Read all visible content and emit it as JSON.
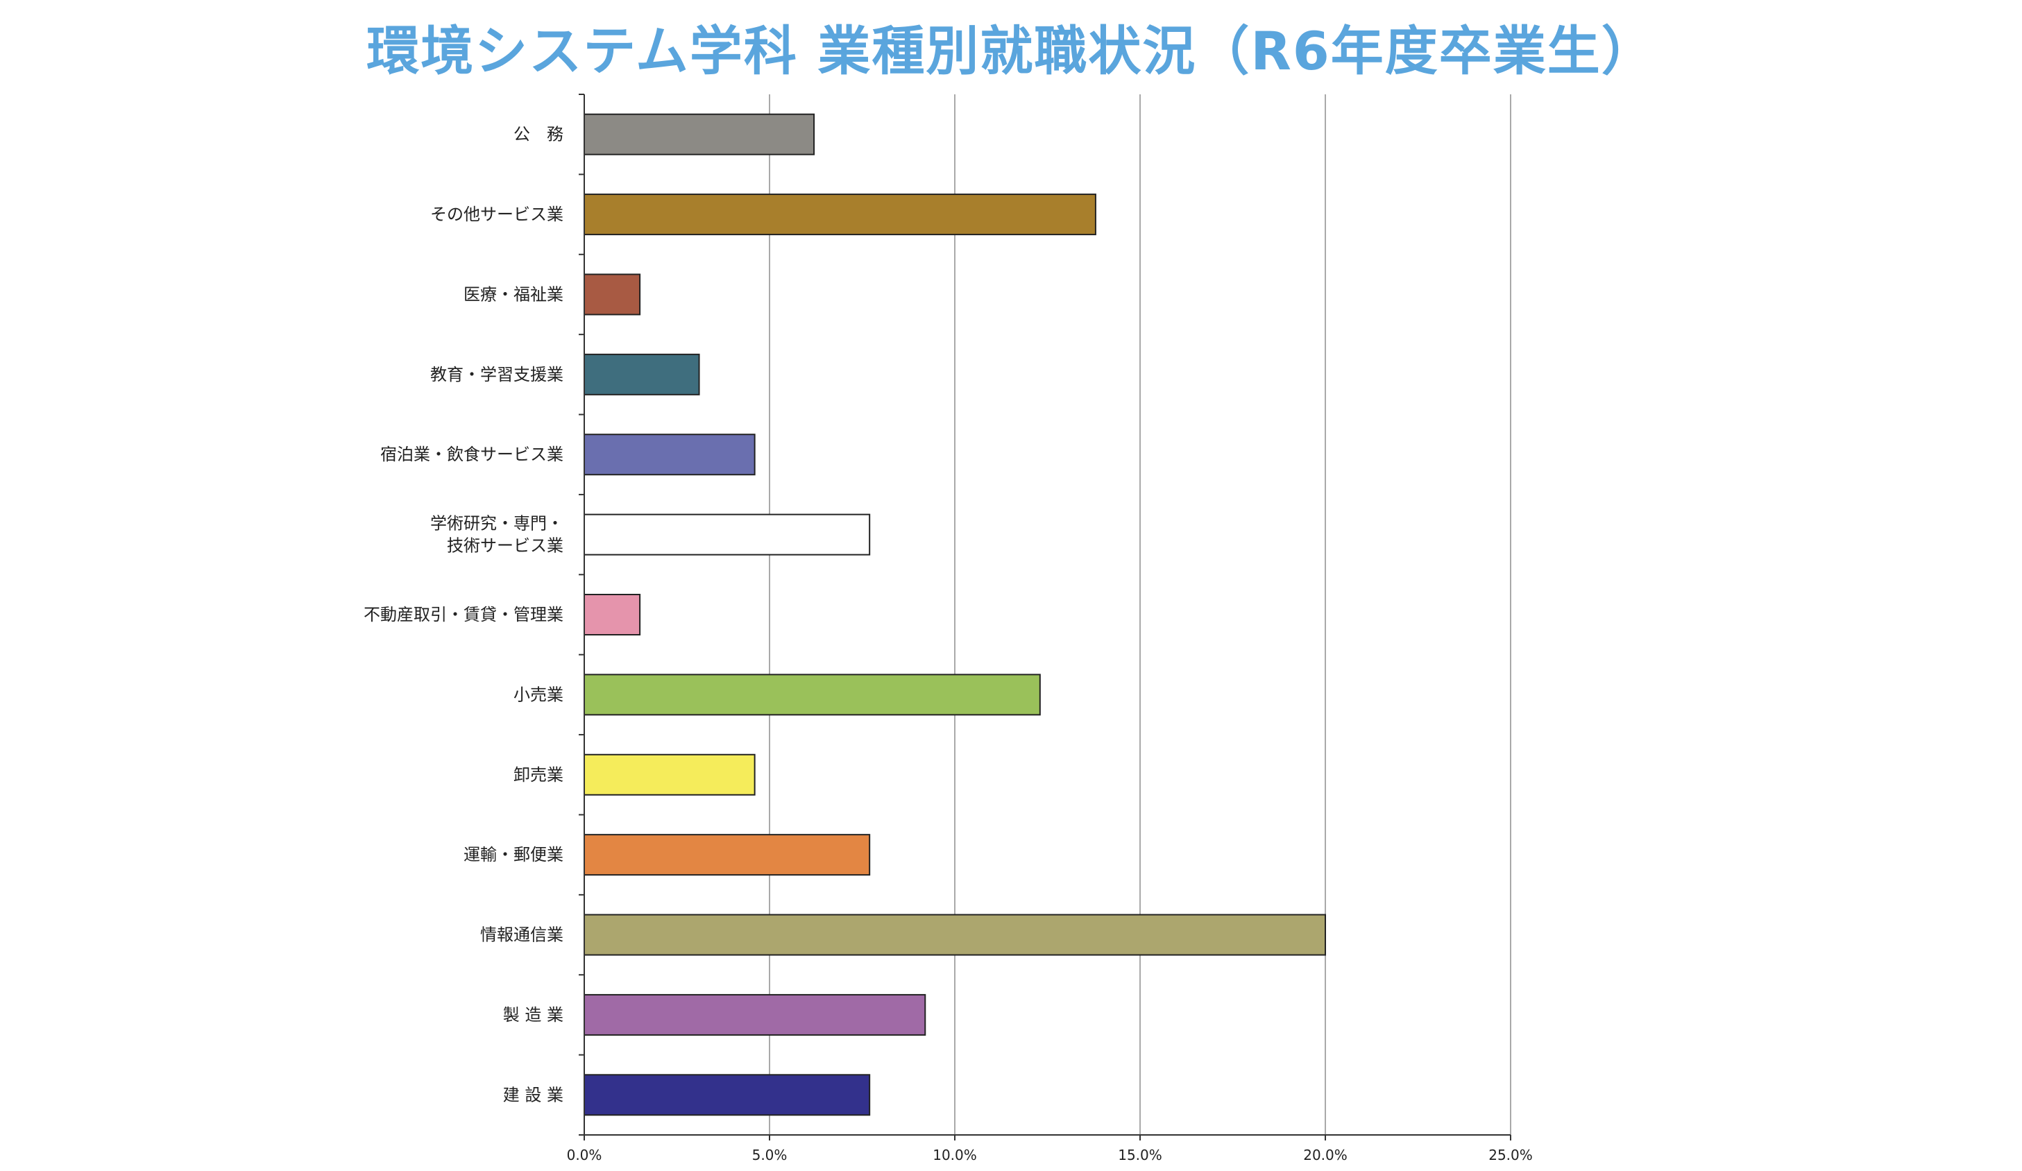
{
  "chart_data": {
    "type": "bar",
    "orientation": "horizontal",
    "title": "環境システム学科 業種別就職状況（R6年度卒業生）",
    "categories": [
      "公　務",
      "その他サービス業",
      "医療・福祉業",
      "教育・学習支援業",
      "宿泊業・飲食サービス業",
      "学術研究・専門・\n技術サービス業",
      "不動産取引・賃貸・管理業",
      "小売業",
      "卸売業",
      "運輸・郵便業",
      "情報通信業",
      "製 造 業",
      "建 設 業"
    ],
    "values": [
      6.2,
      13.8,
      1.5,
      3.1,
      4.6,
      7.7,
      1.5,
      12.3,
      4.6,
      7.7,
      20.0,
      9.2,
      7.7
    ],
    "unit": "%",
    "xlim": [
      0,
      25
    ],
    "x_ticks": [
      "0.0%",
      "5.0%",
      "10.0%",
      "15.0%",
      "20.0%",
      "25.0%"
    ],
    "grid": "vertical",
    "legend": "none",
    "colors": [
      "#8c8a85",
      "#a87f2c",
      "#a85a43",
      "#3f6e7e",
      "#6a6faf",
      "#ffffff",
      "#e594ac",
      "#9ac15a",
      "#f5ec5b",
      "#e38643",
      "#aca66e",
      "#a06aa6",
      "#33318c"
    ],
    "title_color": "#5aa5dd"
  }
}
